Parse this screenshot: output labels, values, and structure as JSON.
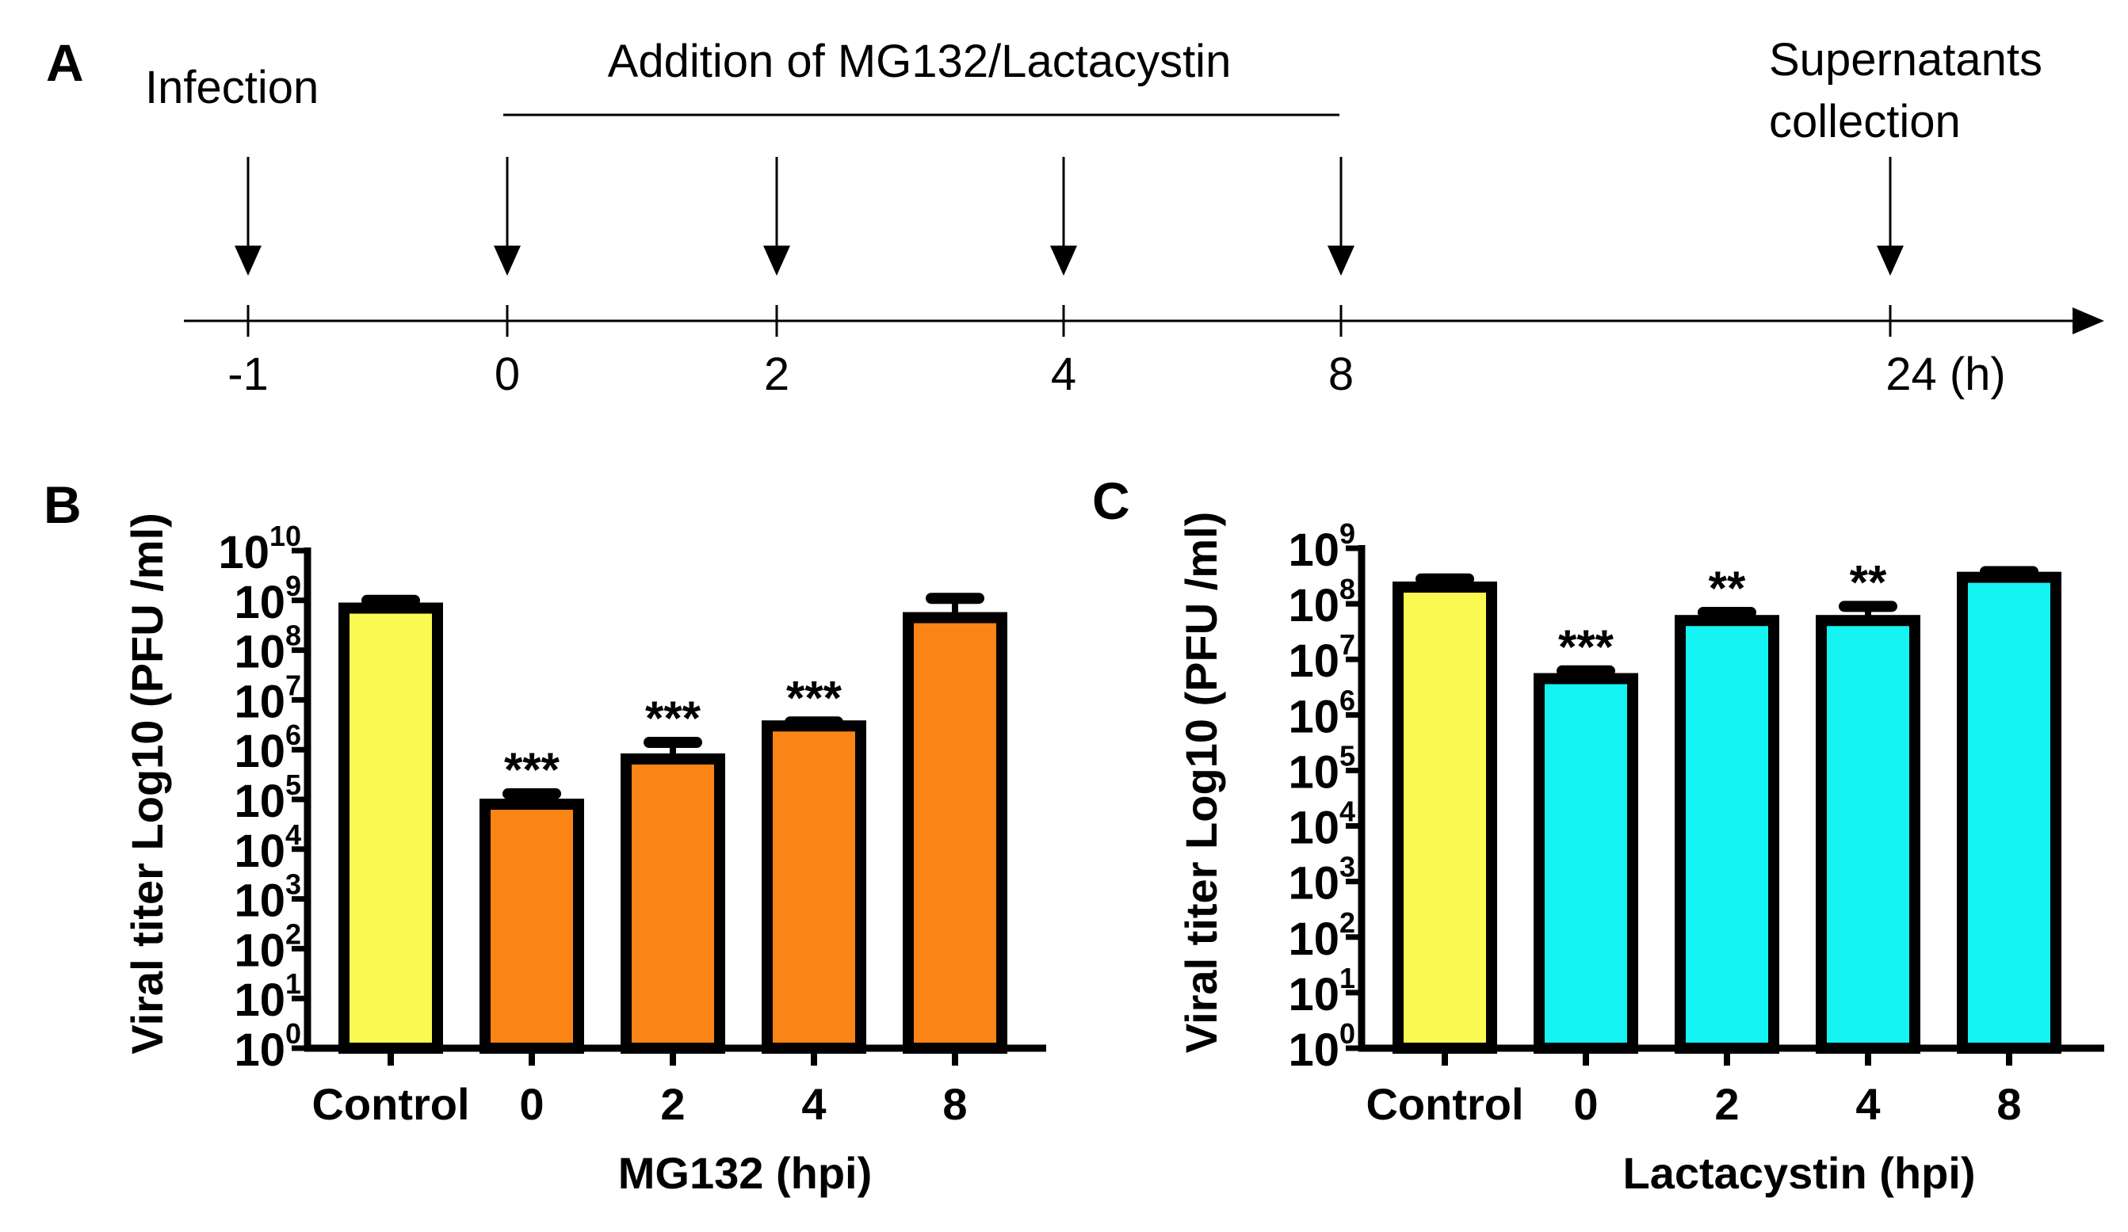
{
  "figure": {
    "panel_a": {
      "letter": "A",
      "labels": {
        "infection": "Infection",
        "addition": "Addition of MG132/Lactacystin",
        "collection_line1": "Supernatants",
        "collection_line2": "collection"
      },
      "ticks": [
        "-1",
        "0",
        "2",
        "4",
        "8",
        "24 (h)"
      ],
      "tick_values": [
        -1,
        0,
        2,
        4,
        8,
        24
      ],
      "arrow_times": [
        -1,
        0,
        2,
        4,
        8,
        24
      ],
      "treatment_range": [
        0,
        8
      ]
    }
  },
  "chart_data": [
    {
      "panel": "B",
      "type": "bar",
      "scale": "log10",
      "title": "",
      "ylabel": "Viral titer Log10 (PFU /ml)",
      "xlabel": "MG132 (hpi)",
      "categories": [
        "Control",
        "0",
        "2",
        "4",
        "8"
      ],
      "values": [
        700000000,
        80000,
        650000,
        3000000,
        450000000
      ],
      "error_upper": [
        1000000000,
        130000,
        1400000,
        3600000,
        1100000000
      ],
      "significance": [
        "",
        "***",
        "***",
        "***",
        ""
      ],
      "colors": [
        "#fafa52",
        "#fa8416",
        "#fa8416",
        "#fa8416",
        "#fa8416"
      ],
      "ylim_exp": [
        0,
        10
      ],
      "yticks": [
        {
          "base": "10",
          "exp": "10"
        },
        {
          "base": "10",
          "exp": "9"
        },
        {
          "base": "10",
          "exp": "8"
        },
        {
          "base": "10",
          "exp": "7"
        },
        {
          "base": "10",
          "exp": "6"
        },
        {
          "base": "10",
          "exp": "5"
        },
        {
          "base": "10",
          "exp": "4"
        },
        {
          "base": "10",
          "exp": "3"
        },
        {
          "base": "10",
          "exp": "2"
        },
        {
          "base": "10",
          "exp": "1"
        },
        {
          "base": "10",
          "exp": "0"
        }
      ]
    },
    {
      "panel": "C",
      "type": "bar",
      "scale": "log10",
      "title": "",
      "ylabel": "Viral titer Log10 (PFU /ml)",
      "xlabel": "Lactacystin (hpi)",
      "categories": [
        "Control",
        "0",
        "2",
        "4",
        "8"
      ],
      "values": [
        200000000,
        4500000,
        50000000,
        50000000,
        300000000
      ],
      "error_upper": [
        280000000,
        6200000,
        70000000,
        90000000,
        380000000
      ],
      "significance": [
        "",
        "***",
        "**",
        "**",
        ""
      ],
      "colors": [
        "#fafa52",
        "#14f2f2",
        "#14f2f2",
        "#14f2f2",
        "#14f2f2"
      ],
      "ylim_exp": [
        0,
        9
      ],
      "yticks": [
        {
          "base": "10",
          "exp": "9"
        },
        {
          "base": "10",
          "exp": "8"
        },
        {
          "base": "10",
          "exp": "7"
        },
        {
          "base": "10",
          "exp": "6"
        },
        {
          "base": "10",
          "exp": "5"
        },
        {
          "base": "10",
          "exp": "4"
        },
        {
          "base": "10",
          "exp": "3"
        },
        {
          "base": "10",
          "exp": "2"
        },
        {
          "base": "10",
          "exp": "1"
        },
        {
          "base": "10",
          "exp": "0"
        }
      ]
    }
  ]
}
